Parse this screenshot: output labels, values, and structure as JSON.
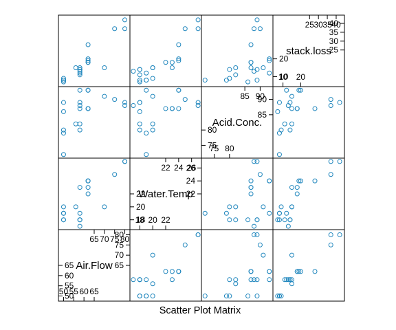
{
  "chart_data": {
    "type": "scatter",
    "subtype": "scatter-plot-matrix",
    "xlabel": "Scatter Plot Matrix",
    "point_color": "#1f86bd",
    "frame_color": "#000000",
    "variables": [
      {
        "name": "Air.Flow",
        "range": [
          48.5,
          81.5
        ],
        "ticks_low": [
          50,
          55,
          60,
          65
        ],
        "ticks_high": [
          65,
          70,
          75,
          80
        ]
      },
      {
        "name": "Water.Temp",
        "range": [
          16.8,
          27.2
        ],
        "ticks_low": [
          18,
          20,
          22
        ],
        "ticks_high": [
          22,
          24,
          26
        ]
      },
      {
        "name": "Acid.Conc.",
        "range": [
          71.5,
          93.5
        ],
        "ticks_low": [
          75,
          80
        ],
        "ticks_high": [
          85,
          90
        ]
      },
      {
        "name": "stack.loss",
        "range": [
          5.5,
          43.5
        ],
        "ticks_low": [
          10,
          20
        ],
        "ticks_high": [
          25,
          30,
          35,
          40
        ]
      }
    ],
    "observations": {
      "Air.Flow": [
        80,
        80,
        75,
        62,
        62,
        62,
        62,
        62,
        58,
        58,
        58,
        58,
        58,
        58,
        50,
        50,
        50,
        50,
        50,
        56,
        70
      ],
      "Water.Temp": [
        27,
        27,
        25,
        24,
        22,
        23,
        24,
        24,
        23,
        18,
        18,
        17,
        18,
        19,
        18,
        18,
        19,
        19,
        20,
        20,
        20
      ],
      "Acid.Conc.": [
        89,
        88,
        90,
        87,
        87,
        87,
        93,
        93,
        87,
        80,
        89,
        88,
        82,
        93,
        89,
        86,
        72,
        79,
        80,
        82,
        91
      ],
      "stack.loss": [
        42,
        37,
        37,
        28,
        18,
        18,
        19,
        20,
        15,
        14,
        14,
        13,
        11,
        12,
        8,
        7,
        8,
        8,
        9,
        15,
        15
      ]
    }
  }
}
